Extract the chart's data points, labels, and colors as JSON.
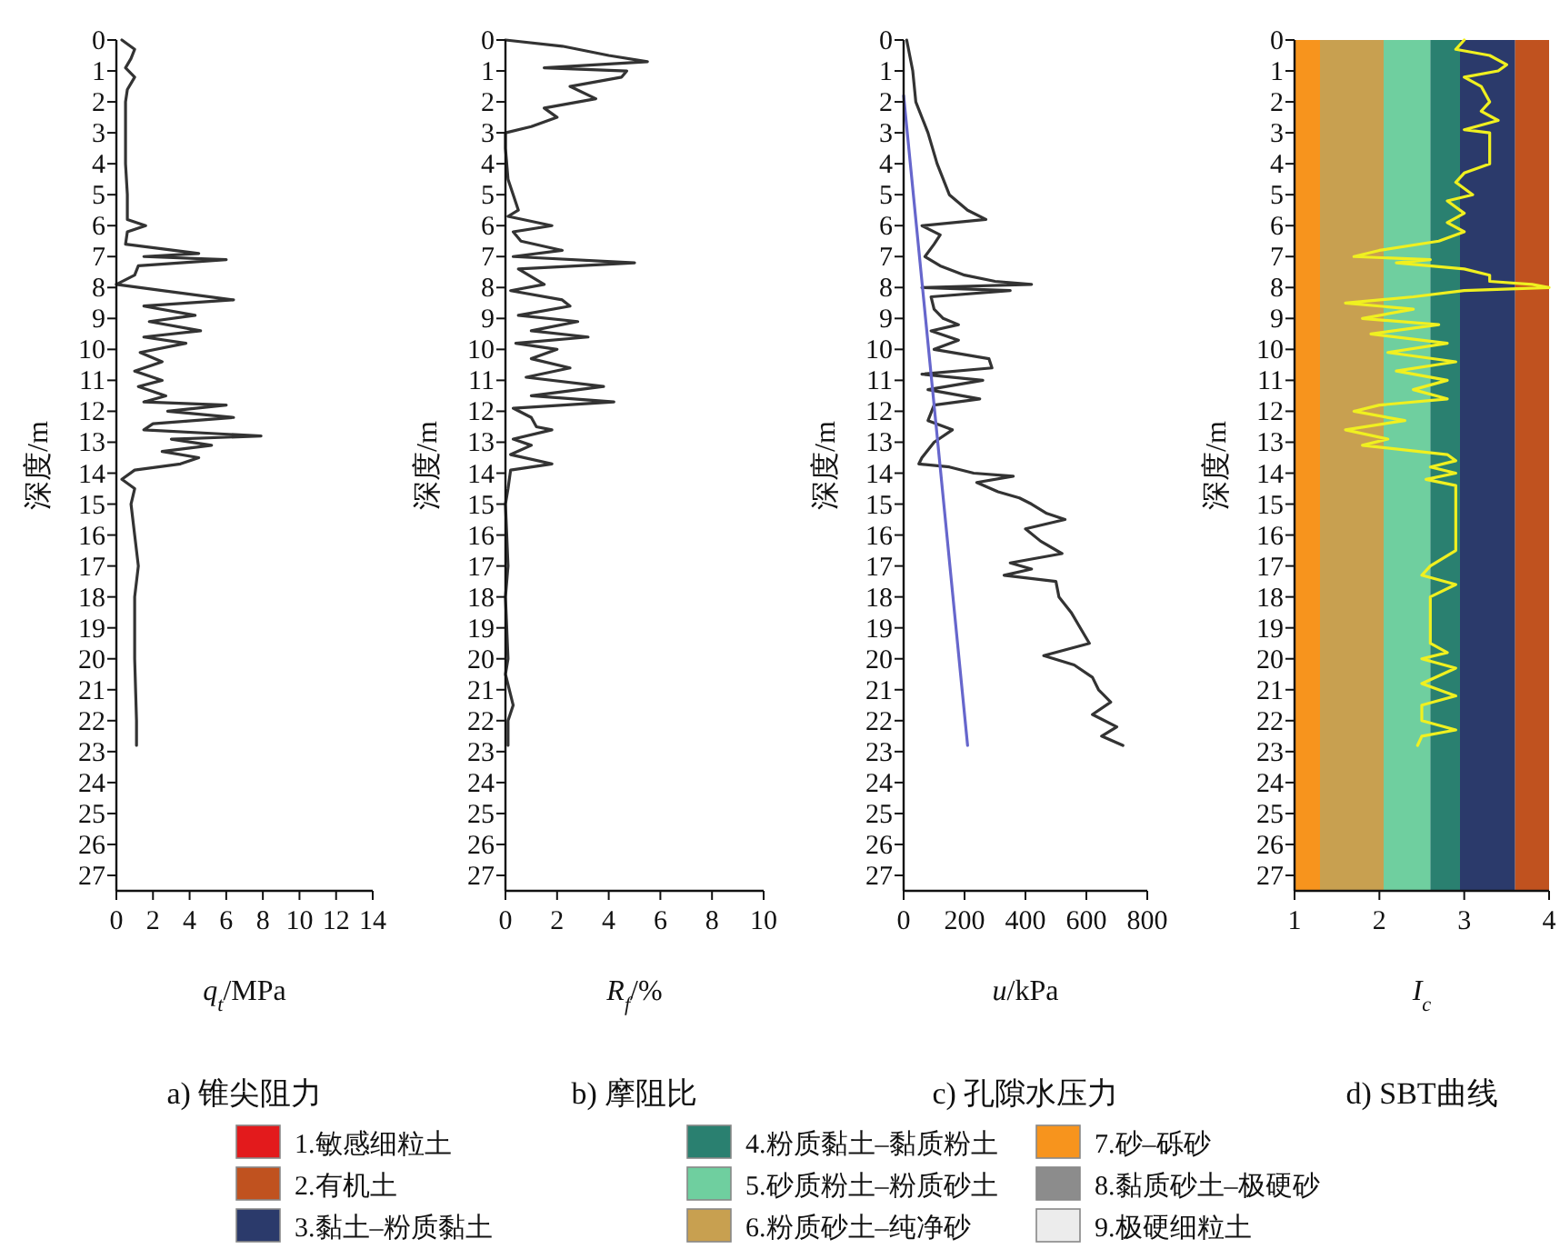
{
  "chart_data": [
    {
      "type": "line",
      "title": "a) 锥尖阻力",
      "xlabel": "*q*$_{t}$/MPa",
      "ylabel": "深度/m",
      "xlim": [
        0,
        14
      ],
      "xticks": [
        0,
        2,
        4,
        6,
        8,
        10,
        12,
        14
      ],
      "ylim": [
        27.5,
        0
      ],
      "yticks": [
        0,
        1,
        2,
        3,
        4,
        5,
        6,
        7,
        8,
        9,
        10,
        11,
        12,
        13,
        14,
        15,
        16,
        17,
        18,
        19,
        20,
        21,
        22,
        23,
        24,
        25,
        26,
        27
      ],
      "series": [
        {
          "color": "#333333",
          "x": [
            0.3,
            1.0,
            0.8,
            0.5,
            1.0,
            0.6,
            0.5,
            0.5,
            0.5,
            0.6,
            0.6,
            1.6,
            0.6,
            0.5,
            4.5,
            1.5,
            6.0,
            1.2,
            1.0,
            0.0,
            2.5,
            6.4,
            1.5,
            4.3,
            1.8,
            4.6,
            1.5,
            3.8,
            1.3,
            2.5,
            1.0,
            2.5,
            1.2,
            2.7,
            1.5,
            6.0,
            2.8,
            6.4,
            2.0,
            1.5,
            7.9,
            3.0,
            5.2,
            2.5,
            4.5,
            3.5,
            1.0,
            0.3,
            1.0,
            0.8,
            1.0,
            1.2,
            1.0,
            1.0,
            1.1,
            1.1
          ],
          "values": [
            0,
            0.3,
            0.6,
            0.9,
            1.2,
            1.6,
            2,
            3,
            4,
            5,
            5.8,
            6.0,
            6.2,
            6.6,
            6.9,
            7.0,
            7.1,
            7.3,
            7.6,
            7.9,
            8.1,
            8.4,
            8.6,
            8.9,
            9.1,
            9.4,
            9.6,
            9.8,
            10.1,
            10.4,
            10.7,
            11.0,
            11.2,
            11.5,
            11.7,
            11.8,
            12.0,
            12.2,
            12.4,
            12.6,
            12.8,
            12.9,
            13.1,
            13.3,
            13.5,
            13.7,
            13.9,
            14.2,
            14.5,
            15,
            16,
            17,
            18,
            20,
            22,
            22.8
          ]
        }
      ]
    },
    {
      "type": "line",
      "title": "b) 摩阻比",
      "xlabel": "*R*$_{f}$/%",
      "ylabel": "深度/m",
      "xlim": [
        0,
        10
      ],
      "xticks": [
        0,
        2,
        4,
        6,
        8,
        10
      ],
      "ylim": [
        27.5,
        0
      ],
      "yticks": [
        0,
        1,
        2,
        3,
        4,
        5,
        6,
        7,
        8,
        9,
        10,
        11,
        12,
        13,
        14,
        15,
        16,
        17,
        18,
        19,
        20,
        21,
        22,
        23,
        24,
        25,
        26,
        27
      ],
      "series": [
        {
          "color": "#333333",
          "x": [
            0,
            2.2,
            4.0,
            5.5,
            1.5,
            4.7,
            4.5,
            2.5,
            3.5,
            1.5,
            2.0,
            1.0,
            0,
            0,
            0.1,
            0.5,
            0.1,
            1.8,
            0.3,
            0.6,
            2.2,
            0.3,
            5.0,
            0.5,
            1.5,
            0.2,
            2.2,
            2.5,
            0.5,
            2.8,
            1.0,
            3.2,
            0.4,
            2.0,
            1.0,
            2.5,
            0.8,
            3.8,
            1.0,
            4.2,
            0.3,
            1.0,
            1.2,
            1.8,
            0.3,
            1.0,
            0.2,
            1.8,
            0.2,
            0.1,
            0,
            0.1,
            0,
            0.1,
            0,
            0.3,
            0.1,
            0.1
          ],
          "values": [
            0,
            0.2,
            0.5,
            0.7,
            0.9,
            1.0,
            1.2,
            1.5,
            1.9,
            2.2,
            2.5,
            2.8,
            3.0,
            3.5,
            4.5,
            5.5,
            5.7,
            6.0,
            6.2,
            6.5,
            6.8,
            7.0,
            7.2,
            7.4,
            7.9,
            8.1,
            8.4,
            8.6,
            8.9,
            9.1,
            9.4,
            9.6,
            9.8,
            10.0,
            10.3,
            10.6,
            10.9,
            11.2,
            11.5,
            11.7,
            11.9,
            12.2,
            12.5,
            12.6,
            12.9,
            13.1,
            13.4,
            13.7,
            13.9,
            14.5,
            15,
            17,
            18,
            20,
            20.5,
            21.5,
            22.0,
            22.8
          ]
        }
      ]
    },
    {
      "type": "line",
      "title": "c) 孔隙水压力",
      "xlabel": "*u*/kPa",
      "ylabel": "深度/m",
      "xlim": [
        0,
        800
      ],
      "xticks": [
        0,
        200,
        400,
        600,
        800
      ],
      "ylim": [
        27.5,
        0
      ],
      "yticks": [
        0,
        1,
        2,
        3,
        4,
        5,
        6,
        7,
        8,
        9,
        10,
        11,
        12,
        13,
        14,
        15,
        16,
        17,
        18,
        19,
        20,
        21,
        22,
        23,
        24,
        25,
        26,
        27
      ],
      "series": [
        {
          "color": "#333333",
          "x": [
            10,
            30,
            40,
            80,
            110,
            150,
            210,
            270,
            60,
            120,
            100,
            70,
            120,
            200,
            300,
            420,
            60,
            350,
            90,
            100,
            130,
            180,
            90,
            180,
            100,
            280,
            290,
            60,
            260,
            80,
            250,
            100,
            80,
            160,
            100,
            60,
            50,
            150,
            230,
            360,
            240,
            310,
            380,
            420,
            470,
            530,
            400,
            450,
            520,
            350,
            420,
            330,
            500,
            510,
            550,
            580,
            610,
            460,
            560,
            620,
            640,
            680,
            620,
            700,
            650,
            720
          ],
          "values": [
            0,
            1,
            2,
            3,
            4,
            5,
            5.5,
            5.8,
            6.0,
            6.3,
            6.6,
            7.0,
            7.3,
            7.6,
            7.8,
            7.9,
            8.0,
            8.1,
            8.3,
            8.7,
            9.0,
            9.2,
            9.4,
            9.7,
            10.0,
            10.3,
            10.6,
            10.8,
            11.0,
            11.3,
            11.6,
            11.8,
            12.3,
            12.6,
            13.0,
            13.5,
            13.7,
            13.8,
            14.0,
            14.1,
            14.3,
            14.6,
            14.8,
            15.0,
            15.3,
            15.5,
            15.8,
            16.2,
            16.6,
            16.9,
            17.1,
            17.3,
            17.5,
            18.0,
            18.5,
            19.0,
            19.5,
            19.9,
            20.2,
            20.6,
            21.0,
            21.4,
            21.8,
            22.2,
            22.5,
            22.8
          ]
        },
        {
          "color": "#6666cc",
          "x": [
            0,
            210
          ],
          "values": [
            1.8,
            22.8
          ]
        }
      ]
    },
    {
      "type": "line",
      "title": "d) SBT曲线",
      "xlabel": "*I*$_{c}$",
      "ylabel": "深度/m",
      "xlim": [
        1,
        4
      ],
      "xticks": [
        1,
        2,
        3,
        4
      ],
      "ylim": [
        27.5,
        0
      ],
      "yticks": [
        0,
        1,
        2,
        3,
        4,
        5,
        6,
        7,
        8,
        9,
        10,
        11,
        12,
        13,
        14,
        15,
        16,
        17,
        18,
        19,
        20,
        21,
        22,
        23,
        24,
        25,
        26,
        27
      ],
      "bands": [
        {
          "axis": "x",
          "from": 1,
          "to": 1.3,
          "color": "#f7941d"
        },
        {
          "axis": "x",
          "from": 1.3,
          "to": 2.05,
          "color": "#c8a050"
        },
        {
          "axis": "x",
          "from": 2.05,
          "to": 2.6,
          "color": "#6fcf9f"
        },
        {
          "axis": "x",
          "from": 2.6,
          "to": 2.95,
          "color": "#2a8070"
        },
        {
          "axis": "x",
          "from": 2.95,
          "to": 3.6,
          "color": "#2b3a6b"
        },
        {
          "axis": "x",
          "from": 3.6,
          "to": 4,
          "color": "#c0521f"
        }
      ],
      "series": [
        {
          "color": "#f0f020",
          "x": [
            3.0,
            2.9,
            3.3,
            3.5,
            3.4,
            3.0,
            3.2,
            3.3,
            3.2,
            3.4,
            3.0,
            3.3,
            3.3,
            3.3,
            3.3,
            3.0,
            2.9,
            3.1,
            2.8,
            3.0,
            2.8,
            3.0,
            2.7,
            2.0,
            1.7,
            2.6,
            2.2,
            3.0,
            3.3,
            3.3,
            3.8,
            4.0,
            3.0,
            2.4,
            1.6,
            2.4,
            1.8,
            2.7,
            1.9,
            2.8,
            2.1,
            2.9,
            2.2,
            2.8,
            2.4,
            2.8,
            2.0,
            1.7,
            2.3,
            1.6,
            2.1,
            1.8,
            2.8,
            2.9,
            2.6,
            2.9,
            2.55,
            2.9,
            2.9,
            2.9,
            2.9,
            2.6,
            2.5,
            2.9,
            2.6,
            2.6,
            2.6,
            2.6,
            2.8,
            2.5,
            2.9,
            2.5,
            2.9,
            2.5,
            2.5,
            2.9,
            2.5,
            2.45
          ],
          "values": [
            0,
            0.3,
            0.5,
            0.8,
            1.0,
            1.2,
            1.5,
            2.0,
            2.3,
            2.6,
            2.9,
            3.0,
            3.3,
            3.6,
            4.0,
            4.3,
            4.6,
            5.0,
            5.2,
            5.6,
            5.9,
            6.2,
            6.5,
            6.8,
            7.0,
            7.1,
            7.2,
            7.4,
            7.6,
            7.8,
            7.9,
            8.0,
            8.1,
            8.3,
            8.5,
            8.7,
            9.0,
            9.2,
            9.5,
            9.8,
            10.1,
            10.4,
            10.7,
            11.0,
            11.3,
            11.6,
            11.8,
            12.0,
            12.3,
            12.6,
            12.9,
            13.1,
            13.4,
            13.6,
            13.8,
            14.0,
            14.2,
            14.4,
            14.8,
            15.5,
            16.5,
            17.0,
            17.3,
            17.6,
            18,
            18.5,
            19,
            19.5,
            19.8,
            20.0,
            20.3,
            20.8,
            21.2,
            21.5,
            22.0,
            22.3,
            22.5,
            22.8
          ]
        }
      ]
    },
    {
      "type": "other",
      "categories": [
        "1.敏感细粒土",
        "2.有机土",
        "3.黏土–粉质黏土",
        "4.粉质黏土–黏质粉土",
        "5.砂质粉土–粉质砂土",
        "6.粉质砂土–纯净砂",
        "7.砂–砾砂",
        "8.黏质砂土–极硬砂",
        "9.极硬细粒土"
      ],
      "colors": [
        "#e31a1c",
        "#c0521f",
        "#2b3a6b",
        "#2a8070",
        "#6fcf9f",
        "#c8a050",
        "#f7941d",
        "#8c8c8c",
        "#ececec"
      ]
    }
  ]
}
